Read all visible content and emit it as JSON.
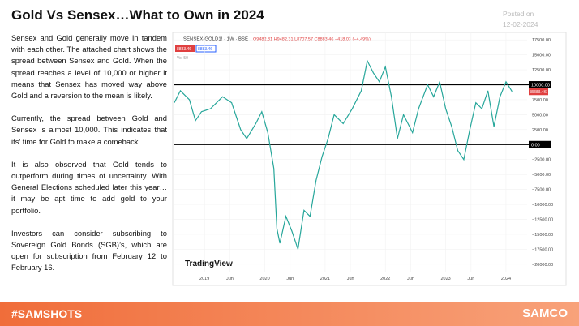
{
  "header": {
    "title": "Gold Vs Sensex…What to Own in 2024",
    "posted_label": "Posted on",
    "posted_date": "12-02-2024"
  },
  "body": {
    "paragraphs": [
      "Sensex and Gold generally move in tandem with each other. The attached chart shows the spread between Sensex and Gold. When the spread reaches a level of 10,000 or higher it means that Sensex has moved way above Gold and a reversion to the mean is likely.",
      "Currently, the spread between Gold and Sensex is almost 10,000. This indicates that its’ time for Gold to make a comeback.",
      "It is also observed that Gold tends to outperform during times of uncertainty. With General Elections scheduled later this year…it may be apt time to add gold to your portfolio.",
      "Investors can consider subscribing to Sovereign Gold Bonds (SGB)’s, which are open for subscription from February 12 to February 16."
    ]
  },
  "chart_data": {
    "type": "line",
    "symbol": "SENSEX-GOLD1! · 1W · BSE",
    "ohlc": "O9482.31 H9482.31 L8707.57 C8883.46 −418.03 (−4.49%)",
    "volume_label": "Vol 50",
    "brand": "TradingView",
    "color": "#26a69a",
    "x": [
      2018.5,
      2018.6,
      2018.75,
      2018.85,
      2018.95,
      2019.1,
      2019.3,
      2019.45,
      2019.6,
      2019.7,
      2019.85,
      2019.95,
      2020.05,
      2020.15,
      2020.2,
      2020.25,
      2020.35,
      2020.45,
      2020.55,
      2020.65,
      2020.75,
      2020.85,
      2020.95,
      2021.05,
      2021.15,
      2021.3,
      2021.45,
      2021.6,
      2021.7,
      2021.8,
      2021.9,
      2022.0,
      2022.1,
      2022.2,
      2022.3,
      2022.45,
      2022.55,
      2022.7,
      2022.8,
      2022.9,
      2023.0,
      2023.1,
      2023.2,
      2023.3,
      2023.4,
      2023.5,
      2023.6,
      2023.7,
      2023.8,
      2023.9,
      2024.0,
      2024.1
    ],
    "values": [
      7000,
      9000,
      7500,
      4000,
      5500,
      6000,
      8000,
      7000,
      2500,
      1000,
      3500,
      5500,
      2000,
      -4000,
      -14000,
      -16500,
      -12000,
      -14500,
      -17500,
      -11000,
      -12000,
      -6000,
      -2000,
      1000,
      5000,
      3500,
      6000,
      9000,
      14000,
      12000,
      10500,
      13000,
      8000,
      1000,
      5000,
      2000,
      6000,
      10000,
      8000,
      10500,
      6000,
      3000,
      -1000,
      -2500,
      2500,
      7000,
      6000,
      9000,
      3000,
      8000,
      10500,
      8883
    ],
    "last_label": "8883.46",
    "hlines": [
      {
        "value": 10000,
        "label": "10000.00"
      },
      {
        "value": 0,
        "label": "0.00"
      }
    ],
    "xlim": [
      2018.5,
      2024.35
    ],
    "xticks": [
      {
        "value": 2019,
        "label": "2019"
      },
      {
        "value": 2019.42,
        "label": "Jun"
      },
      {
        "value": 2020,
        "label": "2020"
      },
      {
        "value": 2020.42,
        "label": "Jun"
      },
      {
        "value": 2021,
        "label": "2021"
      },
      {
        "value": 2021.42,
        "label": "Jun"
      },
      {
        "value": 2022,
        "label": "2022"
      },
      {
        "value": 2022.42,
        "label": "Jun"
      },
      {
        "value": 2023,
        "label": "2023"
      },
      {
        "value": 2023.42,
        "label": "Jun"
      },
      {
        "value": 2024,
        "label": "2024"
      }
    ],
    "ylim": [
      -21250,
      18750
    ],
    "yticks": [
      {
        "value": 17500,
        "label": "17500.00"
      },
      {
        "value": 15000,
        "label": "15000.00"
      },
      {
        "value": 12500,
        "label": "12500.00"
      },
      {
        "value": 10000,
        "label": "10000.00"
      },
      {
        "value": 7500,
        "label": "7500.00"
      },
      {
        "value": 5000,
        "label": "5000.00"
      },
      {
        "value": 2500,
        "label": "2500.00"
      },
      {
        "value": 0,
        "label": "0.00"
      },
      {
        "value": -2500,
        "label": "−2500.00"
      },
      {
        "value": -5000,
        "label": "−5000.00"
      },
      {
        "value": -7500,
        "label": "−7500.00"
      },
      {
        "value": -10000,
        "label": "−10000.00"
      },
      {
        "value": -12500,
        "label": "−12500.00"
      },
      {
        "value": -15000,
        "label": "−15000.00"
      },
      {
        "value": -17500,
        "label": "−17500.00"
      },
      {
        "value": -20000,
        "label": "−20000.00"
      }
    ]
  },
  "footer": {
    "hashtag": "#SAMSHOTS",
    "logo": "SAMCO"
  }
}
